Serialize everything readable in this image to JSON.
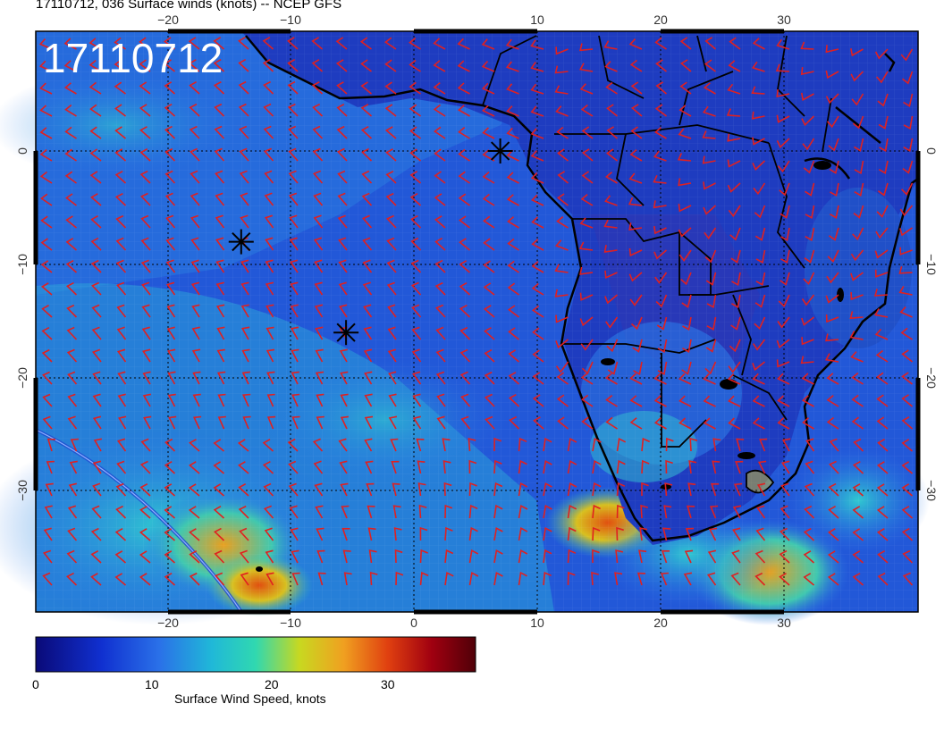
{
  "header": {
    "title": "17110712, 036 Surface winds (knots) -- NCEP GFS",
    "stamp": "17110712"
  },
  "map": {
    "lon_labels": [
      "−20",
      "−10",
      "0",
      "10",
      "20",
      "30"
    ],
    "lat_labels": [
      "0",
      "−10",
      "−20",
      "−30"
    ],
    "markers": [
      {
        "lon": 7,
        "lat": 0
      },
      {
        "lon": -14,
        "lat": -8
      },
      {
        "lon": -5.5,
        "lat": -16
      }
    ]
  },
  "colorbar": {
    "label": "Surface Wind Speed, knots",
    "ticks": [
      "0",
      "10",
      "20",
      "30"
    ],
    "colors": [
      "#0a0a78",
      "#1030d0",
      "#2a70e8",
      "#20b8d8",
      "#30d8b0",
      "#c8d820",
      "#f0a020",
      "#e04010",
      "#a00010",
      "#500008"
    ]
  },
  "barb_color": "#e02020"
}
